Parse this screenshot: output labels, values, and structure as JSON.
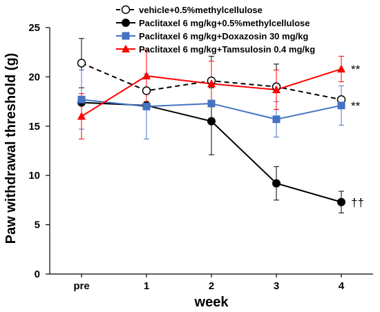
{
  "chart_data": {
    "type": "line",
    "title": "",
    "xlabel": "week",
    "ylabel": "Paw withdrawal threshold (g)",
    "categories": [
      "pre",
      "1",
      "2",
      "3",
      "4"
    ],
    "ylim": [
      0,
      25
    ],
    "yticks": [
      0,
      5,
      10,
      15,
      20,
      25
    ],
    "grid": false,
    "legend_position": "top",
    "series": [
      {
        "name": "vehicle+0.5%methylcellulose",
        "color": "#000000",
        "line_style": "dashed",
        "marker": "open-circle",
        "values": [
          21.4,
          18.6,
          19.6,
          19.0,
          17.7
        ],
        "error": [
          2.5,
          0.0,
          2.5,
          2.3,
          0.0
        ]
      },
      {
        "name": "Paclitaxel 6 mg/kg+0.5%methylcellulose",
        "color": "#000000",
        "line_style": "solid",
        "marker": "filled-circle",
        "values": [
          17.4,
          17.1,
          15.5,
          9.2,
          7.3
        ],
        "error": [
          0.0,
          0.0,
          3.4,
          1.7,
          1.1
        ]
      },
      {
        "name": "Paclitaxel 6 mg/kg+Doxazosin 30 mg/kg",
        "color": "#4472c4",
        "line_style": "solid",
        "marker": "square",
        "values": [
          17.7,
          17.0,
          17.3,
          15.7,
          17.1
        ],
        "error": [
          3.0,
          3.3,
          0.0,
          1.8,
          2.0
        ]
      },
      {
        "name": "Paclitaxel 6 mg/kg+Tamsulosin 0.4 mg/kg",
        "color": "#ff0000",
        "line_style": "solid",
        "marker": "triangle",
        "values": [
          16.0,
          20.1,
          19.3,
          18.7,
          20.8
        ],
        "error": [
          2.3,
          2.6,
          2.3,
          2.0,
          1.3
        ]
      }
    ],
    "annotations": [
      {
        "text": "**",
        "series": 3,
        "category": 4
      },
      {
        "text": "**",
        "series": 2,
        "category": 4
      },
      {
        "text": "††",
        "series": 1,
        "category": 4
      }
    ]
  }
}
